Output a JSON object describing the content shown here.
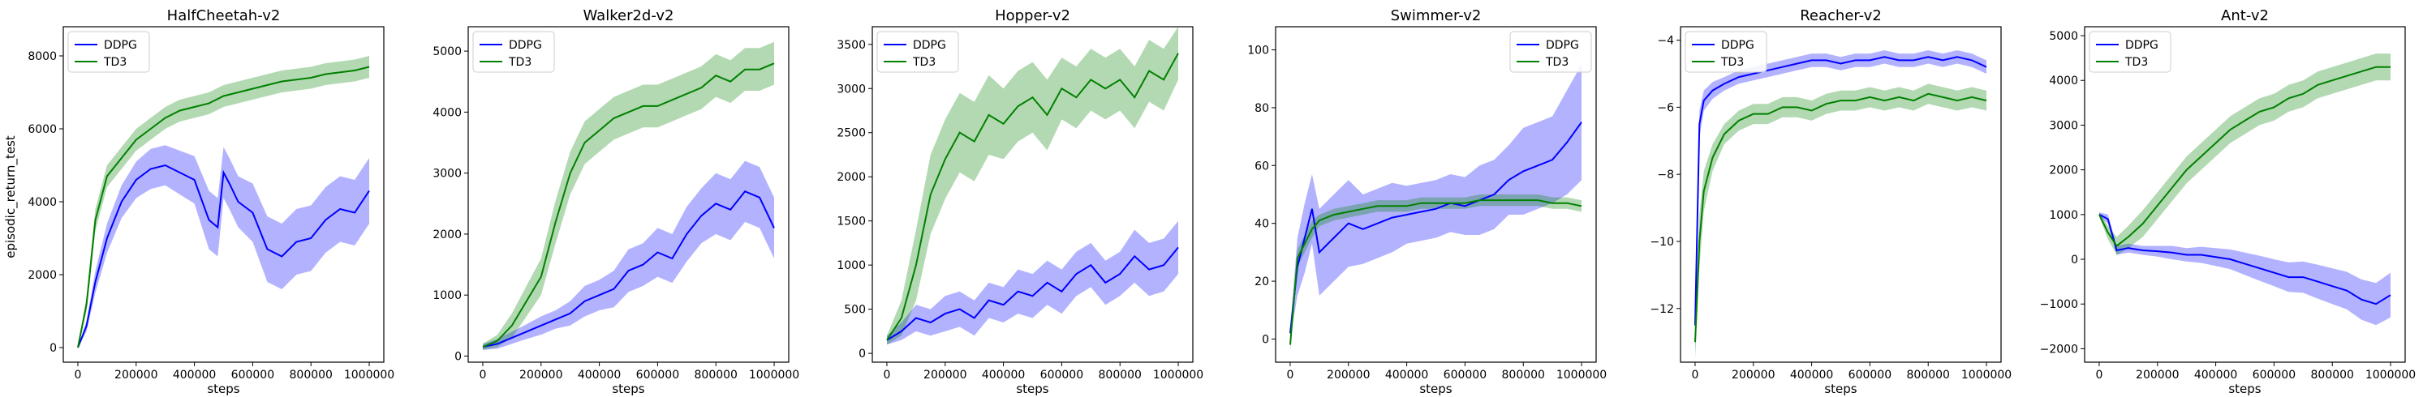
{
  "figure": {
    "ylabel": "episodic_return_test",
    "colors": {
      "ddpg": "#0000ff",
      "td3": "#008000"
    }
  },
  "chart_data": [
    {
      "type": "line",
      "title": "HalfCheetah-v2",
      "xlabel": "steps",
      "ylabel": "episodic_return_test",
      "xlim": [
        -50000,
        1050000
      ],
      "ylim": [
        -400,
        8800
      ],
      "xticks": [
        0,
        200000,
        400000,
        600000,
        800000,
        1000000
      ],
      "yticks": [
        0,
        2000,
        4000,
        6000,
        8000
      ],
      "legend": "upper-left",
      "series": [
        {
          "name": "DDPG",
          "color": "#0000ff",
          "x": [
            0,
            30000,
            60000,
            100000,
            150000,
            200000,
            250000,
            300000,
            350000,
            400000,
            450000,
            480000,
            500000,
            520000,
            550000,
            600000,
            650000,
            700000,
            750000,
            800000,
            850000,
            900000,
            950000,
            1000000
          ],
          "y": [
            0,
            600,
            1800,
            3000,
            4000,
            4600,
            4900,
            5000,
            4800,
            4600,
            3500,
            3300,
            4800,
            4500,
            4000,
            3700,
            2700,
            2500,
            2900,
            3000,
            3500,
            3800,
            3700,
            4300
          ],
          "spread": [
            0,
            150,
            300,
            400,
            450,
            500,
            550,
            550,
            600,
            650,
            800,
            800,
            700,
            700,
            700,
            800,
            900,
            900,
            900,
            900,
            900,
            900,
            900,
            900
          ]
        },
        {
          "name": "TD3",
          "color": "#008000",
          "x": [
            0,
            30000,
            60000,
            100000,
            150000,
            200000,
            250000,
            300000,
            350000,
            400000,
            450000,
            500000,
            550000,
            600000,
            650000,
            700000,
            750000,
            800000,
            850000,
            900000,
            950000,
            1000000
          ],
          "y": [
            0,
            1200,
            3500,
            4700,
            5200,
            5700,
            6000,
            6300,
            6500,
            6600,
            6700,
            6900,
            7000,
            7100,
            7200,
            7300,
            7350,
            7400,
            7500,
            7550,
            7600,
            7700
          ],
          "spread": [
            0,
            200,
            300,
            300,
            300,
            300,
            300,
            300,
            300,
            300,
            300,
            300,
            300,
            300,
            300,
            300,
            300,
            300,
            300,
            300,
            300,
            300
          ]
        }
      ]
    },
    {
      "type": "line",
      "title": "Walker2d-v2",
      "xlabel": "steps",
      "ylabel": "",
      "xlim": [
        -50000,
        1050000
      ],
      "ylim": [
        -100,
        5400
      ],
      "xticks": [
        0,
        200000,
        400000,
        600000,
        800000,
        1000000
      ],
      "yticks": [
        0,
        1000,
        2000,
        3000,
        4000,
        5000
      ],
      "legend": "upper-left",
      "series": [
        {
          "name": "DDPG",
          "color": "#0000ff",
          "x": [
            0,
            50000,
            100000,
            150000,
            200000,
            250000,
            300000,
            350000,
            400000,
            450000,
            500000,
            550000,
            600000,
            650000,
            700000,
            750000,
            800000,
            850000,
            900000,
            950000,
            1000000
          ],
          "y": [
            150,
            200,
            300,
            400,
            500,
            600,
            700,
            900,
            1000,
            1100,
            1400,
            1500,
            1700,
            1600,
            2000,
            2300,
            2500,
            2400,
            2700,
            2600,
            2100
          ],
          "spread": [
            50,
            80,
            100,
            120,
            150,
            150,
            200,
            250,
            250,
            300,
            350,
            350,
            400,
            400,
            450,
            450,
            500,
            500,
            500,
            500,
            500
          ]
        },
        {
          "name": "TD3",
          "color": "#008000",
          "x": [
            0,
            50000,
            100000,
            150000,
            200000,
            250000,
            300000,
            350000,
            400000,
            450000,
            500000,
            550000,
            600000,
            650000,
            700000,
            750000,
            800000,
            850000,
            900000,
            950000,
            1000000
          ],
          "y": [
            150,
            250,
            500,
            900,
            1300,
            2200,
            3000,
            3500,
            3700,
            3900,
            4000,
            4100,
            4100,
            4200,
            4300,
            4400,
            4600,
            4500,
            4700,
            4700,
            4800
          ],
          "spread": [
            50,
            100,
            200,
            250,
            300,
            350,
            350,
            350,
            350,
            350,
            350,
            350,
            350,
            350,
            350,
            350,
            350,
            350,
            350,
            350,
            350
          ]
        }
      ]
    },
    {
      "type": "line",
      "title": "Hopper-v2",
      "xlabel": "steps",
      "ylabel": "",
      "xlim": [
        -50000,
        1050000
      ],
      "ylim": [
        -100,
        3700
      ],
      "xticks": [
        0,
        200000,
        400000,
        600000,
        800000,
        1000000
      ],
      "yticks": [
        0,
        500,
        1000,
        1500,
        2000,
        2500,
        3000,
        3500
      ],
      "legend": "upper-left",
      "series": [
        {
          "name": "DDPG",
          "color": "#0000ff",
          "x": [
            0,
            50000,
            100000,
            150000,
            200000,
            250000,
            300000,
            350000,
            400000,
            450000,
            500000,
            550000,
            600000,
            650000,
            700000,
            750000,
            800000,
            850000,
            900000,
            950000,
            1000000
          ],
          "y": [
            150,
            250,
            400,
            350,
            450,
            500,
            400,
            600,
            550,
            700,
            650,
            800,
            700,
            900,
            1000,
            800,
            900,
            1100,
            950,
            1000,
            1200
          ],
          "spread": [
            50,
            100,
            150,
            150,
            200,
            200,
            200,
            200,
            200,
            250,
            250,
            250,
            250,
            250,
            250,
            250,
            250,
            300,
            300,
            300,
            300
          ]
        },
        {
          "name": "TD3",
          "color": "#008000",
          "x": [
            0,
            50000,
            100000,
            150000,
            200000,
            250000,
            300000,
            350000,
            400000,
            450000,
            500000,
            550000,
            600000,
            650000,
            700000,
            750000,
            800000,
            850000,
            900000,
            950000,
            1000000
          ],
          "y": [
            150,
            400,
            1000,
            1800,
            2200,
            2500,
            2400,
            2700,
            2600,
            2800,
            2900,
            2700,
            3000,
            2900,
            3100,
            3000,
            3100,
            2900,
            3200,
            3100,
            3400
          ],
          "spread": [
            50,
            200,
            400,
            450,
            450,
            450,
            450,
            450,
            400,
            400,
            400,
            400,
            350,
            350,
            350,
            350,
            350,
            350,
            350,
            350,
            300
          ]
        }
      ]
    },
    {
      "type": "line",
      "title": "Swimmer-v2",
      "xlabel": "steps",
      "ylabel": "",
      "xlim": [
        -50000,
        1050000
      ],
      "ylim": [
        -8,
        108
      ],
      "xticks": [
        0,
        200000,
        400000,
        600000,
        800000,
        1000000
      ],
      "yticks": [
        0,
        20,
        40,
        60,
        80,
        100
      ],
      "legend": "upper-right",
      "series": [
        {
          "name": "DDPG",
          "color": "#0000ff",
          "x": [
            0,
            25000,
            50000,
            75000,
            100000,
            150000,
            200000,
            250000,
            300000,
            350000,
            400000,
            450000,
            500000,
            550000,
            600000,
            650000,
            700000,
            750000,
            800000,
            850000,
            900000,
            950000,
            1000000
          ],
          "y": [
            2,
            25,
            35,
            45,
            30,
            35,
            40,
            38,
            40,
            42,
            43,
            44,
            45,
            47,
            46,
            48,
            50,
            55,
            58,
            60,
            62,
            68,
            75
          ],
          "spread": [
            2,
            10,
            12,
            12,
            15,
            15,
            15,
            12,
            12,
            12,
            10,
            10,
            10,
            10,
            10,
            12,
            12,
            12,
            15,
            15,
            15,
            18,
            20
          ]
        },
        {
          "name": "TD3",
          "color": "#008000",
          "x": [
            0,
            25000,
            50000,
            75000,
            100000,
            150000,
            200000,
            250000,
            300000,
            350000,
            400000,
            450000,
            500000,
            550000,
            600000,
            650000,
            700000,
            750000,
            800000,
            850000,
            900000,
            950000,
            1000000
          ],
          "y": [
            -2,
            28,
            33,
            38,
            41,
            43,
            44,
            45,
            46,
            46,
            46,
            47,
            47,
            47,
            47,
            48,
            48,
            48,
            48,
            48,
            47,
            47,
            46
          ],
          "spread": [
            2,
            3,
            3,
            3,
            2,
            2,
            2,
            2,
            2,
            2,
            2,
            2,
            2,
            2,
            2,
            2,
            2,
            2,
            2,
            2,
            2,
            2,
            2
          ]
        }
      ]
    },
    {
      "type": "line",
      "title": "Reacher-v2",
      "xlabel": "steps",
      "ylabel": "",
      "xlim": [
        -50000,
        1050000
      ],
      "ylim": [
        -13.6,
        -3.6
      ],
      "xticks": [
        0,
        200000,
        400000,
        600000,
        800000,
        1000000
      ],
      "yticks": [
        -12,
        -10,
        -8,
        -6,
        -4
      ],
      "legend": "upper-left",
      "series": [
        {
          "name": "DDPG",
          "color": "#0000ff",
          "x": [
            0,
            15000,
            30000,
            60000,
            100000,
            150000,
            200000,
            250000,
            300000,
            350000,
            400000,
            450000,
            500000,
            550000,
            600000,
            650000,
            700000,
            750000,
            800000,
            850000,
            900000,
            950000,
            1000000
          ],
          "y": [
            -12.5,
            -6.5,
            -5.8,
            -5.5,
            -5.3,
            -5.1,
            -5.0,
            -4.9,
            -4.8,
            -4.7,
            -4.6,
            -4.6,
            -4.7,
            -4.6,
            -4.6,
            -4.5,
            -4.6,
            -4.6,
            -4.5,
            -4.6,
            -4.5,
            -4.6,
            -4.8
          ],
          "spread": [
            0.8,
            0.4,
            0.3,
            0.25,
            0.2,
            0.2,
            0.2,
            0.2,
            0.2,
            0.2,
            0.2,
            0.2,
            0.2,
            0.2,
            0.2,
            0.2,
            0.2,
            0.2,
            0.2,
            0.2,
            0.2,
            0.2,
            0.2
          ]
        },
        {
          "name": "TD3",
          "color": "#008000",
          "x": [
            0,
            15000,
            30000,
            60000,
            100000,
            150000,
            200000,
            250000,
            300000,
            350000,
            400000,
            450000,
            500000,
            550000,
            600000,
            650000,
            700000,
            750000,
            800000,
            850000,
            900000,
            950000,
            1000000
          ],
          "y": [
            -13,
            -10,
            -8.5,
            -7.5,
            -6.8,
            -6.4,
            -6.2,
            -6.2,
            -6.0,
            -6.0,
            -6.1,
            -5.9,
            -5.8,
            -5.8,
            -5.7,
            -5.8,
            -5.7,
            -5.8,
            -5.6,
            -5.7,
            -5.8,
            -5.7,
            -5.8
          ],
          "spread": [
            0.5,
            0.8,
            0.6,
            0.4,
            0.3,
            0.3,
            0.3,
            0.3,
            0.3,
            0.3,
            0.3,
            0.3,
            0.3,
            0.3,
            0.3,
            0.3,
            0.3,
            0.3,
            0.3,
            0.3,
            0.3,
            0.3,
            0.3
          ]
        }
      ]
    },
    {
      "type": "line",
      "title": "Ant-v2",
      "xlabel": "steps",
      "ylabel": "",
      "xlim": [
        -50000,
        1050000
      ],
      "ylim": [
        -2300,
        5200
      ],
      "xticks": [
        0,
        200000,
        400000,
        600000,
        800000,
        1000000
      ],
      "yticks": [
        -2000,
        -1000,
        0,
        1000,
        2000,
        3000,
        4000,
        5000
      ],
      "legend": "upper-left",
      "series": [
        {
          "name": "DDPG",
          "color": "#0000ff",
          "x": [
            0,
            30000,
            60000,
            100000,
            150000,
            200000,
            250000,
            300000,
            350000,
            400000,
            450000,
            500000,
            550000,
            600000,
            650000,
            700000,
            750000,
            800000,
            850000,
            900000,
            950000,
            1000000
          ],
          "y": [
            1000,
            900,
            200,
            250,
            200,
            180,
            150,
            100,
            100,
            50,
            0,
            -100,
            -200,
            -300,
            -400,
            -400,
            -500,
            -600,
            -700,
            -900,
            -1000,
            -800
          ],
          "spread": [
            50,
            100,
            100,
            100,
            100,
            120,
            150,
            150,
            180,
            200,
            220,
            250,
            280,
            300,
            330,
            350,
            380,
            400,
            420,
            450,
            470,
            500
          ]
        },
        {
          "name": "TD3",
          "color": "#008000",
          "x": [
            0,
            30000,
            60000,
            100000,
            150000,
            200000,
            250000,
            300000,
            350000,
            400000,
            450000,
            500000,
            550000,
            600000,
            650000,
            700000,
            750000,
            800000,
            850000,
            900000,
            950000,
            1000000
          ],
          "y": [
            1000,
            600,
            300,
            500,
            800,
            1200,
            1600,
            2000,
            2300,
            2600,
            2900,
            3100,
            3300,
            3400,
            3600,
            3700,
            3900,
            4000,
            4100,
            4200,
            4300,
            4300
          ],
          "spread": [
            50,
            150,
            200,
            250,
            300,
            300,
            300,
            300,
            300,
            300,
            300,
            300,
            300,
            300,
            300,
            300,
            300,
            300,
            300,
            300,
            300,
            300
          ]
        }
      ]
    }
  ]
}
